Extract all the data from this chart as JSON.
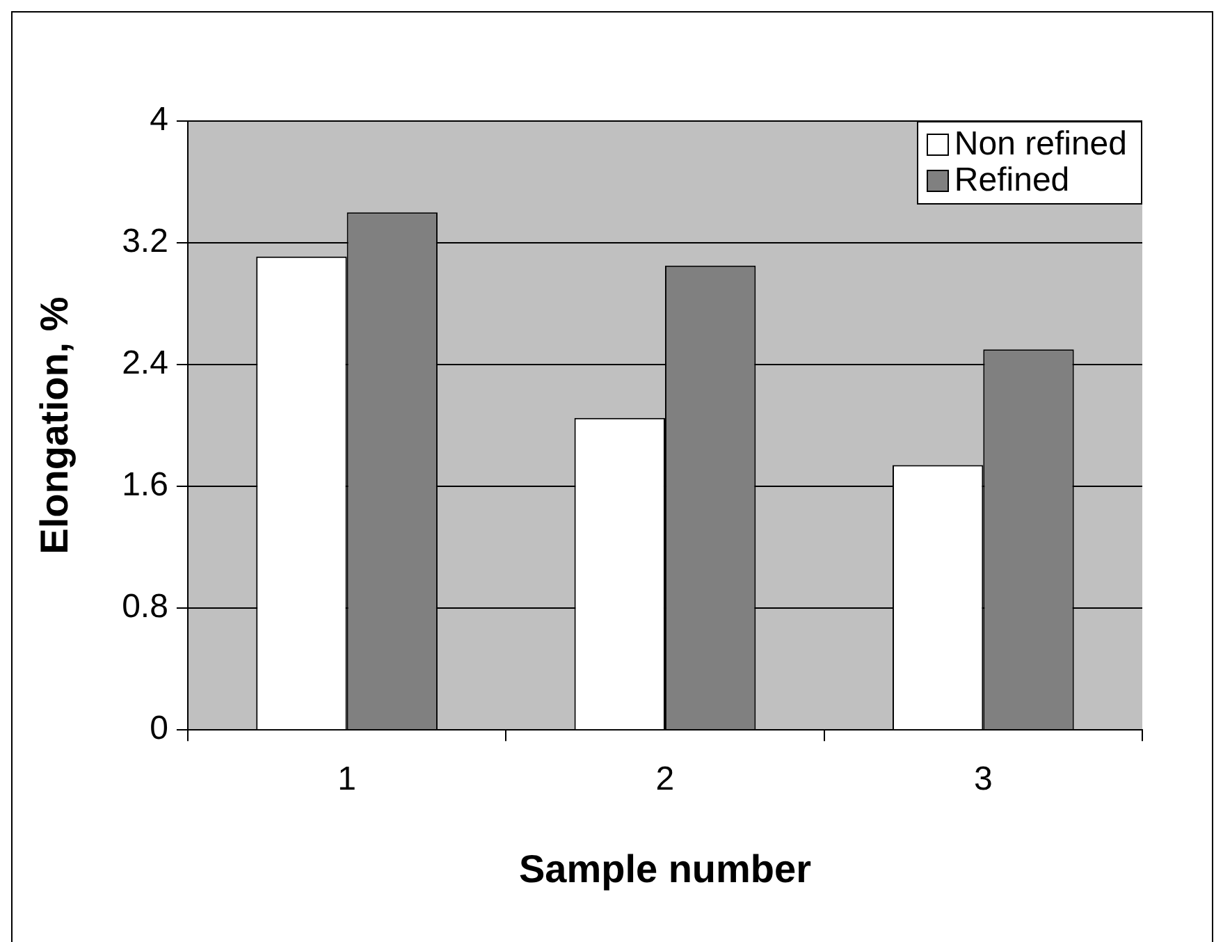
{
  "chart_data": {
    "type": "bar",
    "xlabel": "Sample number",
    "ylabel": "Elongation, %",
    "categories": [
      "1",
      "2",
      "3"
    ],
    "series": [
      {
        "name": "Non refined",
        "color": "#ffffff",
        "values": [
          3.11,
          2.05,
          1.74
        ]
      },
      {
        "name": "Refined",
        "color": "#808080",
        "values": [
          3.4,
          3.05,
          2.5
        ]
      }
    ],
    "ylim": [
      0,
      4
    ],
    "yticks": [
      0,
      0.8,
      1.6,
      2.4,
      3.2,
      4
    ],
    "grid": "y",
    "legend": "top right"
  }
}
